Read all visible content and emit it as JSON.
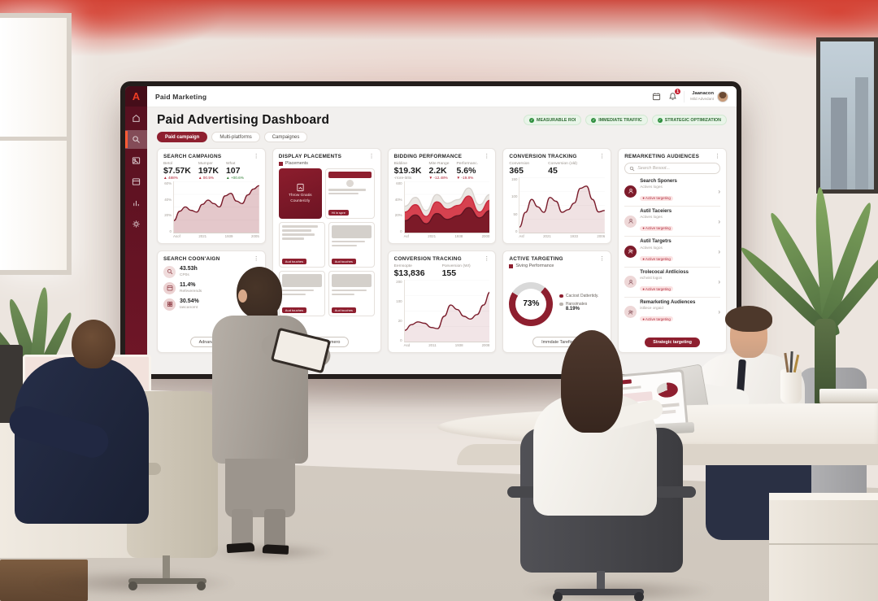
{
  "theme": {
    "maroon": "#8e1f2f",
    "dark_maroon": "#5a1120",
    "bright_red": "#c8293c",
    "pink": "#f6e2e2",
    "bg": "#f2f0ee"
  },
  "sidebar": {
    "logo": "A",
    "items": [
      {
        "icon": "home-icon"
      },
      {
        "icon": "search-icon",
        "active": true
      },
      {
        "icon": "image-card-icon"
      },
      {
        "icon": "layout-card-icon"
      },
      {
        "icon": "bar-chart-icon"
      },
      {
        "icon": "settings-icon"
      }
    ]
  },
  "topbar": {
    "brand": "Paid Marketing",
    "icons": [
      "calendar-icon",
      "bell-icon"
    ],
    "notification_count": "1",
    "user": {
      "name": "Jaanacon",
      "role": "Mild Advedant"
    }
  },
  "header": {
    "title": "Paid Advertising Dashboard",
    "tabs": [
      {
        "label": "Paid campaign",
        "active": true
      },
      {
        "label": "Multi-platforms"
      },
      {
        "label": "Campaignes"
      }
    ],
    "badges": [
      {
        "label": "MEASURABLE ROI"
      },
      {
        "label": "IMMEDIATE TRAFFIC"
      },
      {
        "label": "STRATEGIC OPTIMIZATION"
      }
    ],
    "check_glyph": "✓"
  },
  "cards": {
    "search_campaigns": {
      "title": "SEARCH CAMPAIGNS",
      "kebab": "⋮",
      "metrics": [
        {
          "label": "Betol",
          "value": "$7.57K",
          "change": "▲ 488%",
          "tone": "red"
        },
        {
          "label": "Mumper",
          "value": "197K",
          "change": "▲ 00.5%",
          "tone": "red"
        },
        {
          "label": "What",
          "value": "107",
          "change": "▲ +00.6%",
          "tone": "green"
        }
      ],
      "chart": {
        "type": "area",
        "max": 60,
        "yticks": [
          "60%",
          "40%",
          "20%",
          "0"
        ],
        "xticks": [
          "Asof",
          "2021",
          "1939",
          "2005"
        ],
        "series": [
          {
            "name": "Campaigns",
            "stroke": "#7a1c2b",
            "fill": "rgba(164,72,82,0.30)",
            "values": [
              14,
              25,
              30,
              26,
              24,
              33,
              38,
              34,
              30,
              43,
              46,
              37,
              34,
              44,
              51,
              55
            ]
          }
        ]
      }
    },
    "search_conversion": {
      "title": "SEARCH COON'AIGN",
      "kebab": "⋮",
      "items": [
        {
          "icon": "search-icon",
          "value": "43.53h",
          "label": "CP0s"
        },
        {
          "icon": "calendar-icon",
          "value": "11.4%",
          "label": "Refeverends"
        },
        {
          "icon": "grid-icon",
          "value": "30.54%",
          "label": "tascanomt"
        }
      ],
      "button_label": "Adnanarable"
    },
    "display_placements": {
      "title": "DISPLAY PLACEMENTS",
      "kebab": "⋮",
      "legend": "Placements",
      "hero": {
        "line1": "Throw Gnatis",
        "line2": "Counterizly",
        "button": "Ht in spre"
      },
      "ad_button": "Aud touches",
      "footer_button": "Gaile Remero"
    },
    "bidding_performance": {
      "title": "BIDDING PERFORMANCE",
      "kebab": "⋮",
      "metrics": [
        {
          "label": "Biddine",
          "value": "$19.3K",
          "change": "-rrore-itrits",
          "tone": "mute"
        },
        {
          "label": "Mite Range",
          "value": "2.2K",
          "change": "▼ -12.48%",
          "tone": "red"
        },
        {
          "label": "Performanc.",
          "value": "5.6%",
          "change": "▼ -19.8%",
          "tone": "red"
        }
      ],
      "chart": {
        "type": "stacked-area",
        "max": 70,
        "yticks": [
          "600",
          "40%",
          "20%",
          "0"
        ],
        "xticks": [
          "Asf",
          "2021",
          "1938",
          "2000"
        ],
        "series": [
          {
            "name": "layer-top",
            "stroke": "#d9d4cf",
            "fill": "#eae7e3",
            "values": [
              36,
              48,
              30,
              52,
              40,
              45,
              61,
              38,
              52
            ]
          },
          {
            "name": "layer-mid",
            "stroke": "#c8293c",
            "fill": "#d6414f",
            "values": [
              28,
              38,
              22,
              42,
              32,
              37,
              50,
              28,
              44
            ]
          },
          {
            "name": "layer-base",
            "stroke": "#5f1422",
            "fill": "#7c1a28",
            "values": [
              16,
              24,
              12,
              26,
              18,
              23,
              34,
              20,
              30
            ]
          }
        ]
      }
    },
    "conversion_top": {
      "title": "CONVERSION TRACKING",
      "kebab": "⋮",
      "metrics": [
        {
          "label": "Conversion",
          "value": "365"
        },
        {
          "label": "Conversion (old)",
          "value": "45"
        }
      ],
      "chart": {
        "type": "area",
        "max": 150,
        "yticks": [
          "150",
          "100",
          "50",
          "0"
        ],
        "xticks": [
          "Asf",
          "2021",
          "1933",
          "2006"
        ],
        "series": [
          {
            "name": "Conversions",
            "stroke": "#7a1c2b",
            "fill": "rgba(164,72,82,0.16)",
            "values": [
              15,
              55,
              90,
              70,
              55,
              95,
              85,
              55,
              62,
              80,
              120,
              126,
              90,
              56,
              60
            ]
          }
        ]
      }
    },
    "conversion_bottom": {
      "title": "CONVERSION TRACKING",
      "kebab": "⋮",
      "metrics": [
        {
          "label": "Eernsopte",
          "value": "$13,836"
        },
        {
          "label": "Ponversion (WI)",
          "value": "155"
        }
      ],
      "chart": {
        "type": "area",
        "max": 220,
        "yticks": [
          "200",
          "100",
          "20",
          "0"
        ],
        "xticks": [
          "Asd",
          "2011",
          "1938",
          "2008"
        ],
        "series": [
          {
            "name": "Revenue",
            "stroke": "#7a1c2b",
            "fill": "rgba(164,72,82,0.14)",
            "values": [
              40,
              60,
              70,
              65,
              50,
              46,
              90,
              130,
              114,
              90,
              80,
              96,
              130,
              176
            ]
          }
        ]
      }
    },
    "active_targeting": {
      "title": "ACTIVE TARGETING",
      "kebab": "⋮",
      "legend": "Siving Performance",
      "percent": 73,
      "center_label": "73%",
      "legend_items": [
        {
          "label": "Caciost Dattertidy.",
          "color": "#8e1f2f"
        },
        {
          "label": "Hansimates",
          "value": "8.19%",
          "color": "#b9b3ad"
        }
      ],
      "button_label": "Immdate Tarefic"
    },
    "remarketing": {
      "title": "REMARKETING AUDIENCES",
      "kebab": "⋮",
      "search_placeholder": "Search Besoot...",
      "items": [
        {
          "title": "Search Sponers",
          "sub": "Actives loges",
          "badge": "Active targeting",
          "avatar": "dark",
          "chevron": "›"
        },
        {
          "title": "Autil Taceiers",
          "sub": "Actives loges",
          "badge": "Active targeting",
          "avatar": "light",
          "chevron": "›"
        },
        {
          "title": "Autil Targetrs",
          "sub": "Actives logos",
          "badge": "Active targeting",
          "avatar": "dark",
          "chevron": "›"
        },
        {
          "title": "Trolecocal Antlicioss",
          "sub": "echvist logos",
          "badge": "Active targeting",
          "avatar": "light",
          "chevron": "›"
        },
        {
          "title": "Remarketing Audiences",
          "sub": "istliece orgaid",
          "badge": "Active targeting",
          "avatar": "light",
          "chevron": "›"
        }
      ],
      "button_label": "Strategic targeting"
    }
  }
}
